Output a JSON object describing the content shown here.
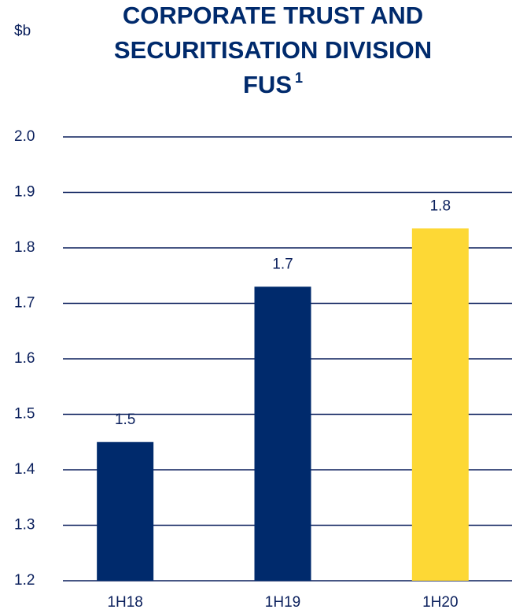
{
  "chart_data": {
    "type": "bar",
    "title": [
      "CORPORATE TRUST AND",
      "SECURITISATION DIVISION",
      "FUS"
    ],
    "title_footnote": "1",
    "unit_label": "$b",
    "categories": [
      "1H18",
      "1H19",
      "1H20"
    ],
    "values": [
      1.45,
      1.73,
      1.835
    ],
    "value_labels": [
      "1.5",
      "1.7",
      "1.8"
    ],
    "colors": [
      "#002a6c",
      "#002a6c",
      "#fdd835"
    ],
    "ylim": [
      1.2,
      2.0
    ],
    "yticks": [
      1.2,
      1.3,
      1.4,
      1.5,
      1.6,
      1.7,
      1.8,
      1.9,
      {
        "value": 2.0,
        "label": "2.0"
      }
    ],
    "grid": true
  }
}
